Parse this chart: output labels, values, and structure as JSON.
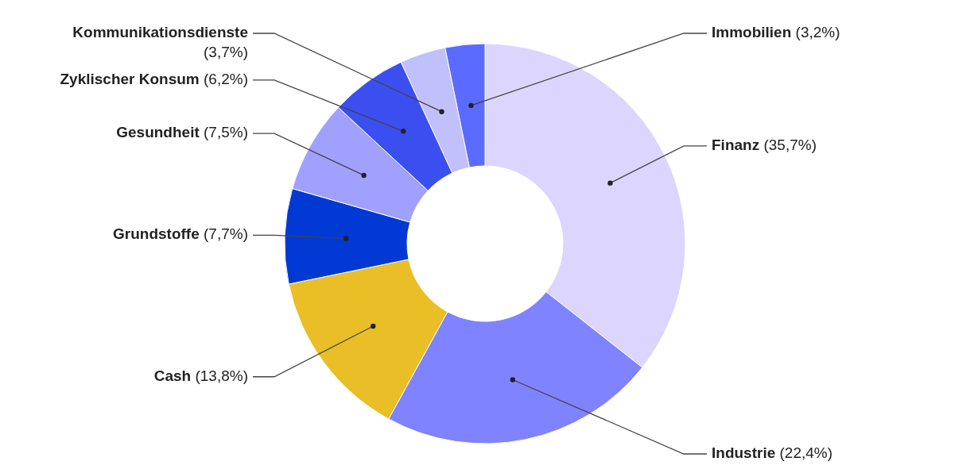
{
  "chart_data": {
    "type": "donut",
    "categories": [
      "Finanz",
      "Industrie",
      "Cash",
      "Grundstoffe",
      "Gesundheit",
      "Zyklischer Konsum",
      "Kommunikationsdienste",
      "Immobilien"
    ],
    "values": [
      35.7,
      22.4,
      13.8,
      7.7,
      7.5,
      6.2,
      3.7,
      3.2
    ],
    "value_labels": [
      "(35,7%)",
      "(22,4%)",
      "(13,8%)",
      "(7,7%)",
      "(7,5%)",
      "(6,2%)",
      "(3,7%)",
      "(3,2%)"
    ],
    "colors": [
      "#dcd6fe",
      "#8083ff",
      "#e9be26",
      "#0039d3",
      "#a0a0ff",
      "#3b4ff0",
      "#c0c0fc",
      "#5c6bff"
    ],
    "legend": false
  }
}
